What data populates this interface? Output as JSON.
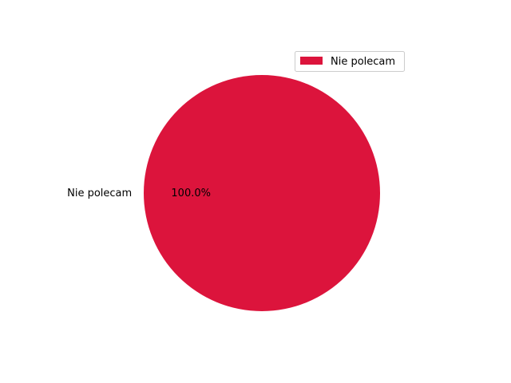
{
  "chart_data": {
    "type": "pie",
    "categories": [
      "Nie polecam"
    ],
    "values": [
      100
    ],
    "percent_labels": [
      "100.0%"
    ],
    "colors": [
      "#dc143c"
    ],
    "legend": {
      "entries": [
        "Nie polecam"
      ],
      "position": "upper-right"
    }
  }
}
